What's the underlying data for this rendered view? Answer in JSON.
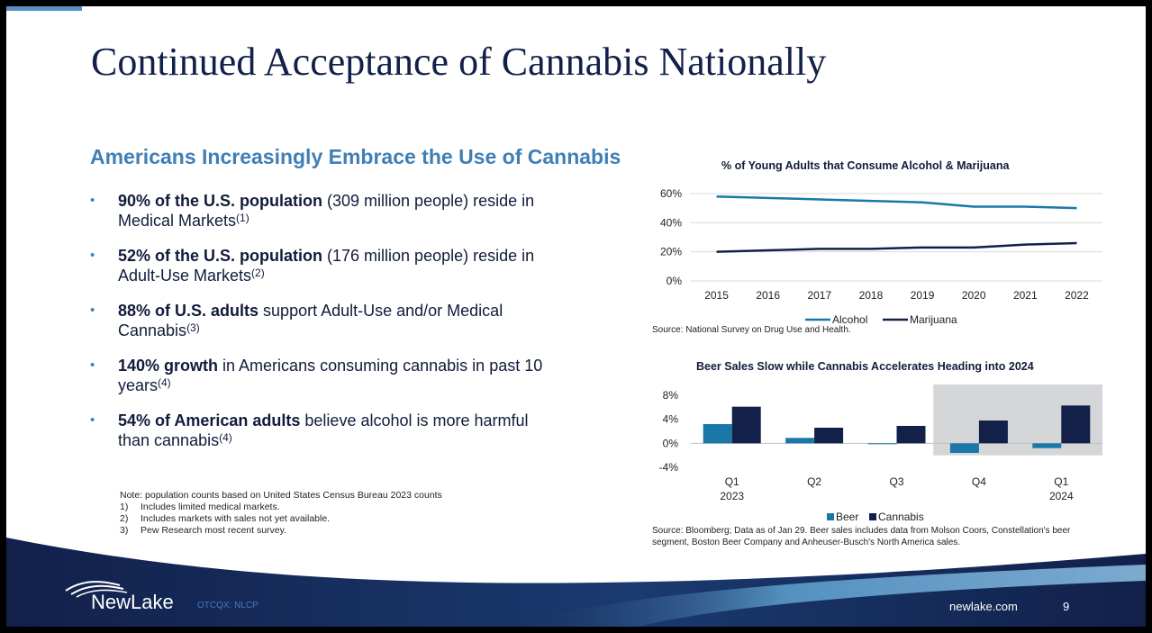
{
  "title": "Continued Acceptance of Cannabis Nationally",
  "subhead": "Americans Increasingly Embrace the Use of Cannabis",
  "bullets": [
    {
      "bold": "90% of the U.S. population",
      "rest": " (309 million people) reside in Medical Markets",
      "ref": "(1)"
    },
    {
      "bold": "52% of the U.S. population",
      "rest": " (176 million people) reside in Adult-Use Markets",
      "ref": "(2)"
    },
    {
      "bold": "88% of U.S. adults",
      "rest": " support Adult-Use and/or Medical Cannabis",
      "ref": "(3)"
    },
    {
      "bold": "140% growth",
      "rest": " in Americans consuming cannabis in past 10 years",
      "ref": "(4)"
    },
    {
      "bold": "54% of American adults",
      "rest": " believe alcohol is more harmful than cannabis",
      "ref": "(4)"
    }
  ],
  "notes": {
    "header": "Note: population counts based on United States Census Bureau 2023 counts",
    "items": [
      {
        "num": "1)",
        "text": "Includes limited medical markets."
      },
      {
        "num": "2)",
        "text": "Includes markets with sales not yet available."
      },
      {
        "num": "3)",
        "text": "Pew Research most recent survey."
      }
    ]
  },
  "chart_data": [
    {
      "type": "line",
      "title": "% of Young Adults that Consume Alcohol & Marijuana",
      "x": [
        "2015",
        "2016",
        "2017",
        "2018",
        "2019",
        "2020",
        "2021",
        "2022"
      ],
      "yticks": [
        "60%",
        "40%",
        "20%",
        "0%"
      ],
      "ylim": [
        0,
        60
      ],
      "series": [
        {
          "name": "Alcohol",
          "color": "#1a78a8",
          "values": [
            58,
            57,
            56,
            55,
            54,
            51,
            51,
            50
          ]
        },
        {
          "name": "Marijuana",
          "color": "#12204a",
          "values": [
            20,
            21,
            22,
            22,
            23,
            23,
            25,
            26
          ]
        }
      ],
      "legend": "bottom",
      "grid": true,
      "source": "Source: National Survey on Drug Use and Health."
    },
    {
      "type": "bar",
      "title": "Beer Sales Slow while Cannabis Accelerates Heading into 2024",
      "categories": [
        {
          "line1": "Q1",
          "line2": "2023"
        },
        {
          "line1": "Q2",
          "line2": ""
        },
        {
          "line1": "Q3",
          "line2": ""
        },
        {
          "line1": "Q4",
          "line2": ""
        },
        {
          "line1": "Q1",
          "line2": "2024"
        }
      ],
      "yticks": [
        "8%",
        "4%",
        "0%",
        "-4%"
      ],
      "ylim": [
        -4,
        8
      ],
      "series": [
        {
          "name": "Beer",
          "color": "#1a78a8",
          "values": [
            3.2,
            0.9,
            -0.1,
            -1.6,
            -0.8
          ]
        },
        {
          "name": "Cannabis",
          "color": "#12204a",
          "values": [
            6.1,
            2.6,
            2.9,
            3.8,
            6.3
          ]
        }
      ],
      "highlight": {
        "categories": [
          "Q4",
          "Q1 2024"
        ],
        "color": "#d4d6d8"
      },
      "legend": "bottom",
      "source": "Source: Bloomberg; Data as of Jan 29. Beer sales includes data from Molson Coors, Constellation's beer segment, Boston Beer Company and Anheuser-Busch's North America sales."
    }
  ],
  "footer": {
    "logo": "NewLake",
    "ticker": "OTCQX: NLCP",
    "site": "newlake.com",
    "page": "9"
  },
  "colors": {
    "navy": "#12204a",
    "accent_blue": "#3f7fb6",
    "wave_light": "#5fa2d0"
  }
}
